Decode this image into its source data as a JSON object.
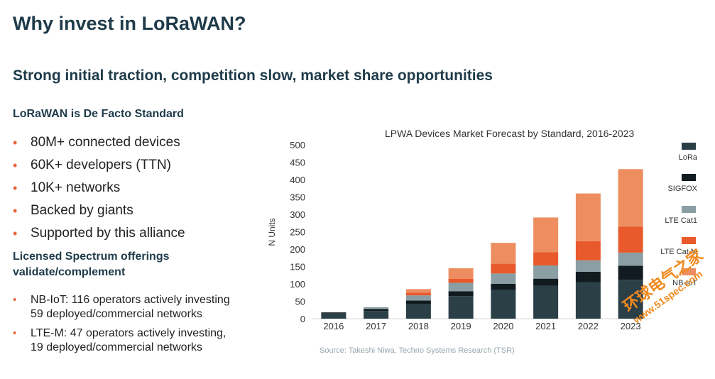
{
  "slide": {
    "title": "Why invest in LoRaWAN?",
    "subtitle": "Strong initial traction, competition slow, market share opportunities"
  },
  "section1": {
    "heading": "LoRaWAN is De Facto Standard",
    "bullets": [
      "80M+ connected devices",
      "60K+ developers (TTN)",
      "10K+ networks",
      "Backed by giants",
      "Supported by this alliance"
    ]
  },
  "section2": {
    "heading_line1": "Licensed Spectrum offerings",
    "heading_line2": "validate/complement",
    "items": [
      {
        "line1": "NB-IoT: 116 operators actively investing",
        "line2": "59 deployed/commercial networks"
      },
      {
        "line1": "LTE-M: 47 operators actively investing,",
        "line2": "19 deployed/commercial networks"
      }
    ]
  },
  "chart_data": {
    "type": "bar",
    "stacked": true,
    "title": "LPWA Devices Market Forecast by Standard, 2016-2023",
    "xlabel": "",
    "ylabel": "N Units",
    "source": "Source: Takeshi Niwa, Techno Systems Research (TSR)",
    "ylim": [
      0,
      500
    ],
    "yticks": [
      0,
      50,
      100,
      150,
      200,
      250,
      300,
      350,
      400,
      450,
      500
    ],
    "categories": [
      "2016",
      "2017",
      "2018",
      "2019",
      "2020",
      "2021",
      "2022",
      "2023"
    ],
    "legend_position": "right",
    "series": [
      {
        "name": "LoRa",
        "color": "#2b3f47",
        "values": [
          15,
          22,
          42,
          65,
          82,
          95,
          105,
          112
        ]
      },
      {
        "name": "SIGFOX",
        "color": "#111b20",
        "values": [
          3,
          6,
          10,
          14,
          18,
          20,
          30,
          40
        ]
      },
      {
        "name": "LTE Cat1",
        "color": "#8a9ea3",
        "values": [
          0,
          5,
          15,
          24,
          30,
          38,
          33,
          38
        ]
      },
      {
        "name": "LTE Cat M",
        "color": "#e8592b",
        "values": [
          0,
          0,
          8,
          12,
          28,
          38,
          55,
          75
        ]
      },
      {
        "name": "NB-IoT",
        "color": "#ee8e60",
        "values": [
          0,
          0,
          10,
          30,
          60,
          100,
          137,
          165
        ]
      }
    ]
  },
  "watermark": {
    "line1": "环球电气之家",
    "line2": "www.51spec.com"
  }
}
